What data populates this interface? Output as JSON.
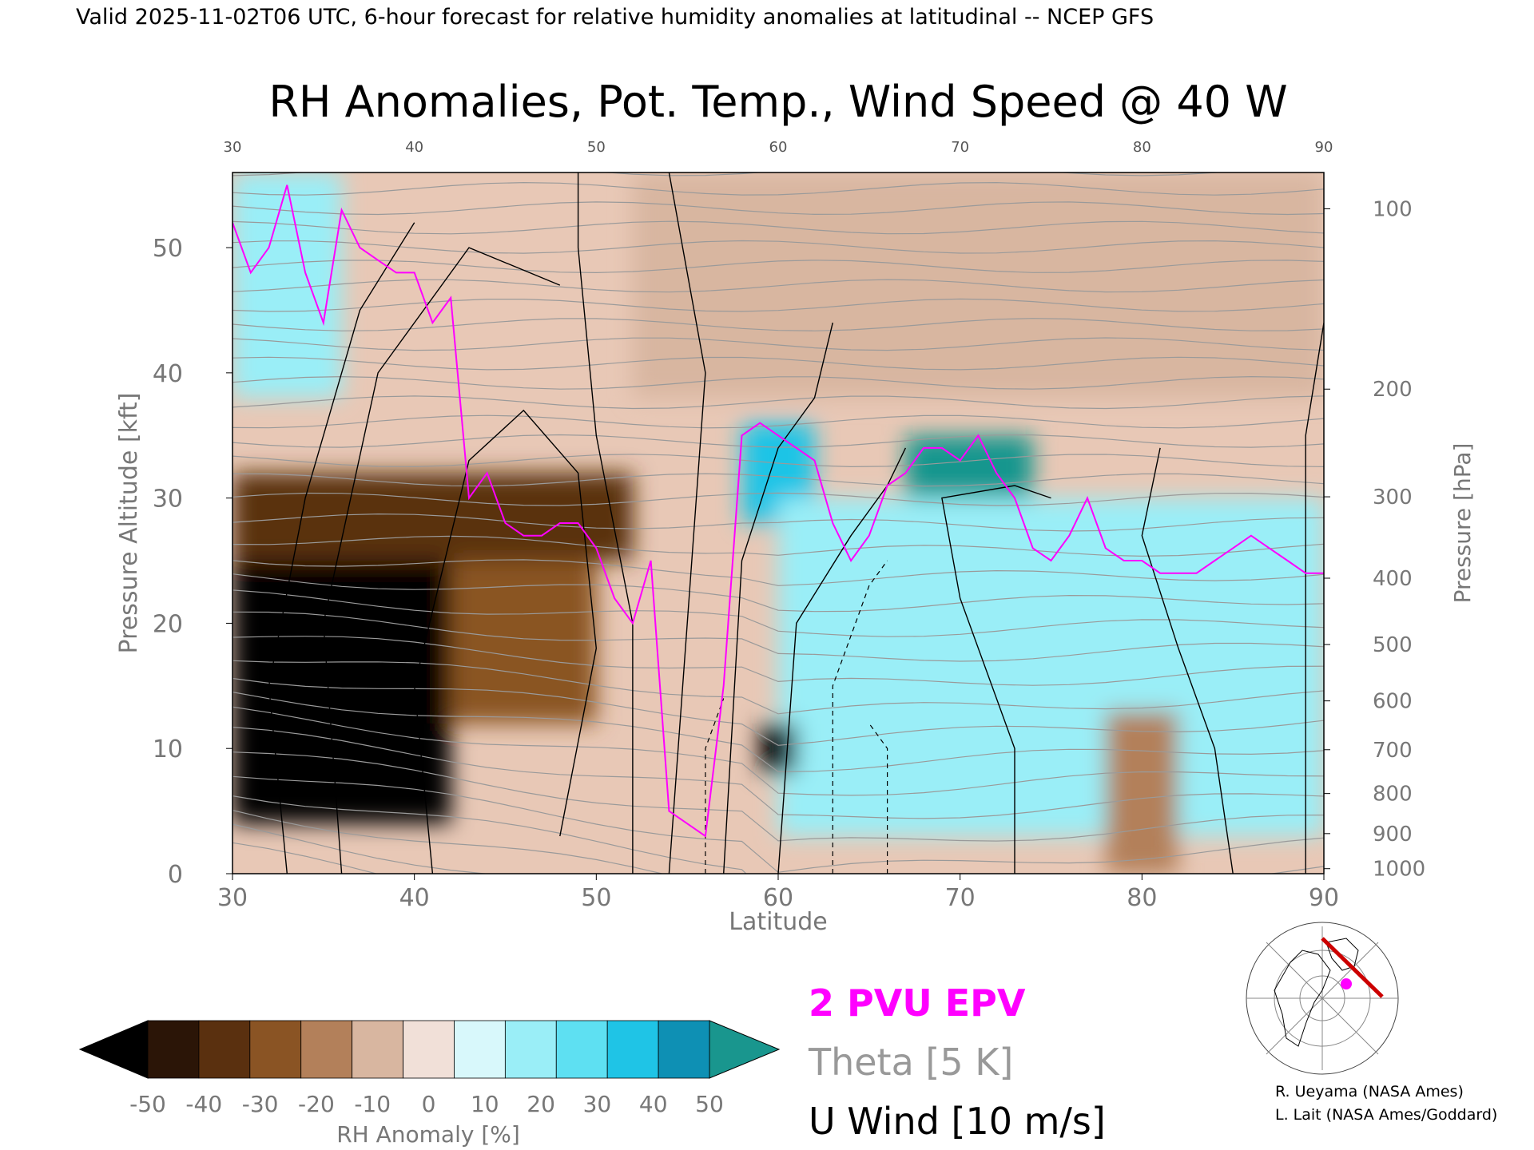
{
  "header": {
    "top_line": "Valid 2025-11-02T06 UTC, 6-hour forecast for relative humidity anomalies at latitudinal -- NCEP GFS",
    "title": "RH Anomalies, Pot. Temp., Wind Speed @ 40 W"
  },
  "chart_data": {
    "type": "heatmap",
    "xlabel": "Latitude",
    "ylabel": "Pressure Altitude [kft]",
    "y2label": "Pressure [hPa]",
    "xlim": [
      30,
      90
    ],
    "ylim": [
      0,
      56
    ],
    "x_ticks": [
      30,
      40,
      50,
      60,
      70,
      80,
      90
    ],
    "y_ticks": [
      0,
      10,
      20,
      30,
      40,
      50
    ],
    "pressure_ticks": [
      {
        "label": "100",
        "kft": 53.1
      },
      {
        "label": "200",
        "kft": 38.7
      },
      {
        "label": "300",
        "kft": 30.1
      },
      {
        "label": "400",
        "kft": 23.6
      },
      {
        "label": "500",
        "kft": 18.3
      },
      {
        "label": "600",
        "kft": 13.8
      },
      {
        "label": "700",
        "kft": 9.9
      },
      {
        "label": "800",
        "kft": 6.4
      },
      {
        "label": "900",
        "kft": 3.2
      },
      {
        "label": "1000",
        "kft": 0.4
      }
    ],
    "rh_regions": [
      {
        "lat": [
          30,
          42
        ],
        "kft": [
          4,
          25
        ],
        "anom": -55
      },
      {
        "lat": [
          30,
          52
        ],
        "kft": [
          25,
          32
        ],
        "anom": -35
      },
      {
        "lat": [
          42,
          50
        ],
        "kft": [
          12,
          25
        ],
        "anom": -30
      },
      {
        "lat": [
          30,
          36
        ],
        "kft": [
          38,
          56
        ],
        "anom": 20
      },
      {
        "lat": [
          58,
          62
        ],
        "kft": [
          28,
          36
        ],
        "anom": 45
      },
      {
        "lat": [
          67,
          74
        ],
        "kft": [
          29,
          35
        ],
        "anom": 50
      },
      {
        "lat": [
          60,
          90
        ],
        "kft": [
          3,
          30
        ],
        "anom": 20
      },
      {
        "lat": [
          78,
          82
        ],
        "kft": [
          0,
          13
        ],
        "anom": -20
      },
      {
        "lat": [
          52,
          90
        ],
        "kft": [
          38,
          56
        ],
        "anom": -8
      },
      {
        "lat": [
          59,
          61
        ],
        "kft": [
          8,
          12
        ],
        "anom": -60
      }
    ],
    "pv2_line": {
      "name": "2 PVU EPV",
      "lat": [
        30,
        31,
        32,
        33,
        34,
        35,
        36,
        37,
        38,
        39,
        40,
        41,
        42,
        43,
        44,
        45,
        46,
        47,
        48,
        49,
        50,
        51,
        52,
        53,
        54,
        55,
        56,
        57,
        58,
        59,
        60,
        61,
        62,
        63,
        64,
        65,
        66,
        67,
        68,
        69,
        70,
        71,
        72,
        73,
        74,
        75,
        76,
        77,
        78,
        79,
        80,
        81,
        82,
        83,
        84,
        85,
        86,
        87,
        88,
        89,
        90
      ],
      "kft": [
        52,
        48,
        50,
        55,
        48,
        44,
        53,
        50,
        49,
        48,
        48,
        44,
        46,
        30,
        32,
        28,
        27,
        27,
        28,
        28,
        26,
        22,
        20,
        25,
        5,
        4,
        3,
        15,
        35,
        36,
        35,
        34,
        33,
        28,
        25,
        27,
        31,
        32,
        34,
        34,
        33,
        35,
        32,
        30,
        26,
        25,
        27,
        30,
        26,
        25,
        25,
        24,
        24,
        24,
        25,
        26,
        27,
        26,
        25,
        24,
        24
      ]
    },
    "legend": {
      "epv": "2 PVU EPV",
      "theta": "Theta [5 K]",
      "uwind": "U Wind [10 m/s]"
    },
    "colorbar": {
      "label": "RH Anomaly [%]",
      "ticks": [
        "-50",
        "-40",
        "-30",
        "-20",
        "-10",
        "0",
        "10",
        "20",
        "30",
        "40",
        "50"
      ],
      "colors": [
        "#2b1507",
        "#5a300f",
        "#8a5424",
        "#b3805a",
        "#d8b6a0",
        "#f1e0d8",
        "#d8f8fb",
        "#9aeef7",
        "#5ee0f2",
        "#1fc4e6",
        "#0e90b4"
      ],
      "under_color": "#000000",
      "over_color": "#19968e"
    }
  },
  "colors": {
    "epv": "#ff00ff",
    "theta": "#999999",
    "wind": "#000000",
    "track": "#cc0000"
  },
  "credits": {
    "line1": "R. Ueyama (NASA Ames)",
    "line2": "L. Lait (NASA Ames/Goddard)"
  }
}
